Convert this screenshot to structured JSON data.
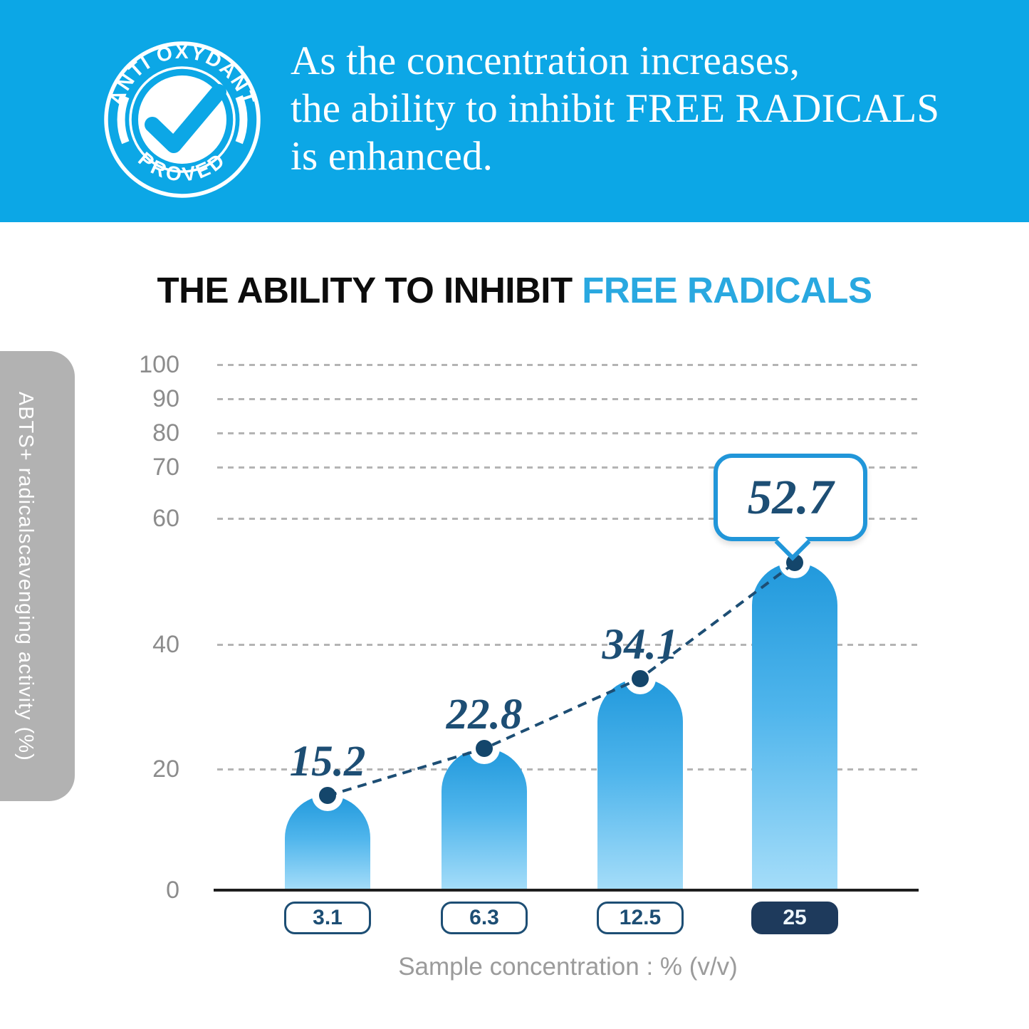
{
  "banner": {
    "bg_color": "#0ca7e6",
    "lines": [
      "As the concentration increases,",
      "the ability to inhibit FREE RADICALS",
      "is enhanced."
    ]
  },
  "badge": {
    "top_text": "ANTI OXYDANT",
    "bottom_text": "PROVED",
    "check_icon": "checkmark"
  },
  "title": {
    "black_part": "THE ABILITY TO INHIBIT ",
    "blue_part": "FREE RADICALS",
    "blue_color": "#29a8e0"
  },
  "chart_data": {
    "type": "bar",
    "title": "THE ABILITY TO INHIBIT FREE RADICALS",
    "categories": [
      "3.1",
      "6.3",
      "12.5",
      "25"
    ],
    "values": [
      15.2,
      22.8,
      34.1,
      52.7
    ],
    "value_labels": [
      "15.2",
      "22.8",
      "34.1",
      "52.7"
    ],
    "callout_index": 3,
    "highlighted_category_index": 3,
    "xlabel": "Sample concentration : % (v/v)",
    "ylabel": "ABTS+ radicalscavenging activity (%)",
    "yticks": [
      0,
      20,
      40,
      60,
      70,
      80,
      90,
      100
    ],
    "ylim": [
      0,
      100
    ],
    "grid": "horizontal-dashed",
    "legend_position": "none",
    "trend_line": "dashed navy line connecting bar-top data points",
    "colors": {
      "bar_gradient_top": "#2199dc",
      "bar_gradient_bottom": "#a5ddf9",
      "navy_accent": "#1d4e74",
      "dot_fill": "#14466b",
      "callout_border": "#2196d9",
      "gridline": "#b4b4b4",
      "tick_text": "#8c8c8c",
      "caption_text": "#9b9b9b",
      "ylabel_pill_bg": "#b2b2b2"
    }
  }
}
